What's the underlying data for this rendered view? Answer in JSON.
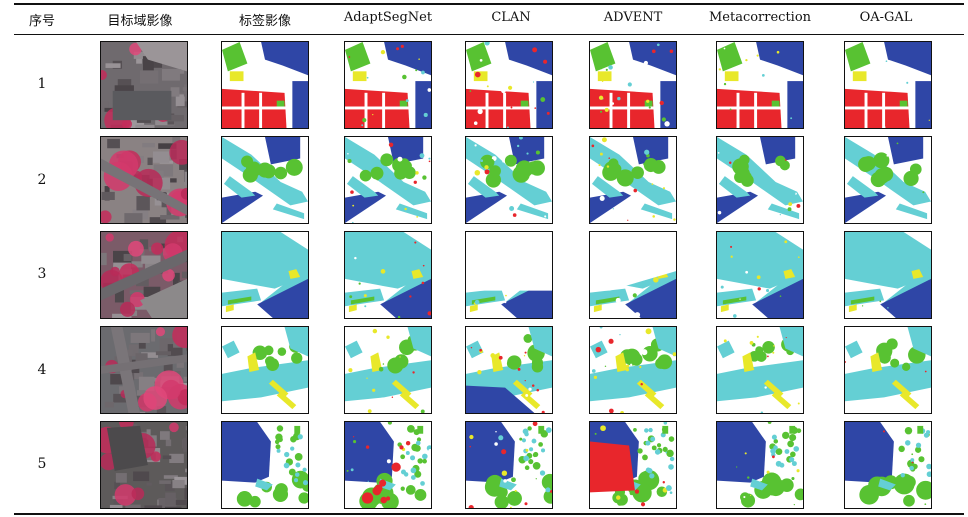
{
  "table": {
    "headers": [
      "序号",
      "目标域影像",
      "标签影像",
      "AdaptSegNet",
      "CLAN",
      "ADVENT",
      "Metacorrection",
      "OA-GAL"
    ],
    "rows": [
      {
        "index": "1"
      },
      {
        "index": "2"
      },
      {
        "index": "3"
      },
      {
        "index": "4"
      },
      {
        "index": "5"
      }
    ]
  },
  "colors": {
    "impervious_surface": "#ffffff",
    "building": "#2f46a6",
    "low_vegetation": "#64cfd4",
    "tree": "#58c232",
    "car": "#e8e82a",
    "clutter": "#e8262c",
    "border": "#111111"
  }
}
